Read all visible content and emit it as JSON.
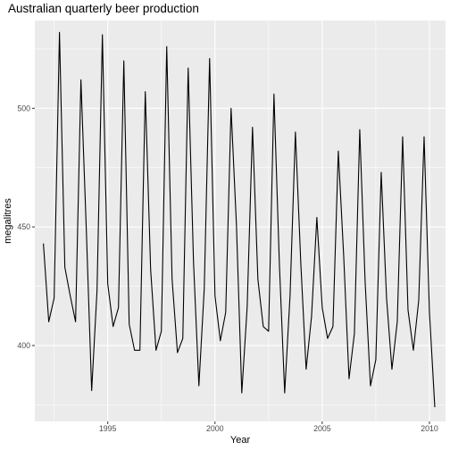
{
  "chart_data": {
    "type": "line",
    "title": "Australian quarterly beer production",
    "xlabel": "Year",
    "ylabel": "megalitres",
    "xlim": [
      1991.6,
      2010.75
    ],
    "ylim": [
      368,
      537
    ],
    "xticks": [
      1995,
      2000,
      2005,
      2010
    ],
    "yticks": [
      400,
      450,
      500
    ],
    "grid": true,
    "legend": "none",
    "colors": {
      "panel": "#ebebeb",
      "grid": "#ffffff",
      "line": "#000000"
    },
    "series": [
      {
        "x": [
          1992.0,
          1992.25,
          1992.5,
          1992.75,
          1993.0,
          1993.25,
          1993.5,
          1993.75,
          1994.0,
          1994.25,
          1994.5,
          1994.75,
          1995.0,
          1995.25,
          1995.5,
          1995.75,
          1996.0,
          1996.25,
          1996.5,
          1996.75,
          1997.0,
          1997.25,
          1997.5,
          1997.75,
          1998.0,
          1998.25,
          1998.5,
          1998.75,
          1999.0,
          1999.25,
          1999.5,
          1999.75,
          2000.0,
          2000.25,
          2000.5,
          2000.75,
          2001.0,
          2001.25,
          2001.5,
          2001.75,
          2002.0,
          2002.25,
          2002.5,
          2002.75,
          2003.0,
          2003.25,
          2003.5,
          2003.75,
          2004.0,
          2004.25,
          2004.5,
          2004.75,
          2005.0,
          2005.25,
          2005.5,
          2005.75,
          2006.0,
          2006.25,
          2006.5,
          2006.75,
          2007.0,
          2007.25,
          2007.5,
          2007.75,
          2008.0,
          2008.25,
          2008.5,
          2008.75,
          2009.0,
          2009.25,
          2009.5,
          2009.75,
          2010.0,
          2010.25
        ],
        "y": [
          443,
          410,
          420,
          532,
          433,
          421,
          410,
          512,
          449,
          381,
          423,
          531,
          426,
          408,
          416,
          520,
          409,
          398,
          398,
          507,
          432,
          398,
          406,
          526,
          428,
          397,
          403,
          517,
          435,
          383,
          424,
          521,
          421,
          402,
          414,
          500,
          451,
          380,
          416,
          492,
          428,
          408,
          406,
          506,
          435,
          380,
          421,
          490,
          435,
          390,
          412,
          454,
          416,
          403,
          408,
          482,
          438,
          386,
          405,
          491,
          427,
          383,
          394,
          473,
          420,
          390,
          410,
          488,
          415,
          398,
          419,
          488,
          414,
          374
        ]
      }
    ]
  }
}
